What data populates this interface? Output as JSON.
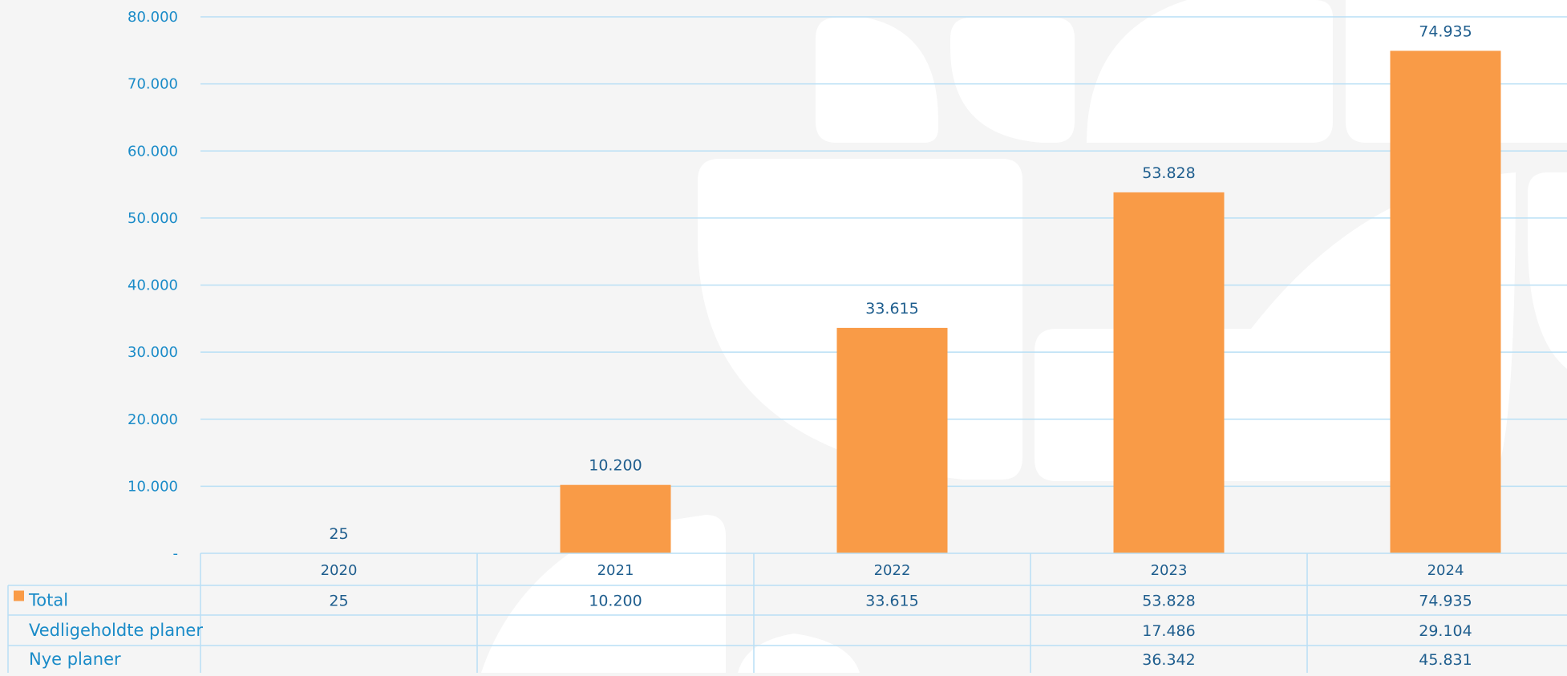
{
  "colors": {
    "bar": "#f99b47",
    "text": "#1a8bc8",
    "label_dark": "#1f5e8e",
    "grid": "#b9dff5",
    "background": "#f5f5f5",
    "watermark": "#ffffff"
  },
  "chart_data": {
    "type": "bar",
    "categories": [
      "2020",
      "2021",
      "2022",
      "2023",
      "2024"
    ],
    "series": [
      {
        "name": "Total",
        "values": [
          25,
          10200,
          33615,
          53828,
          74935
        ]
      }
    ],
    "ylim": [
      0,
      80000
    ],
    "yticks": [
      "-",
      "10.000",
      "20.000",
      "30.000",
      "40.000",
      "50.000",
      "60.000",
      "70.000",
      "80.000"
    ],
    "data_labels": [
      "25",
      "10.200",
      "33.615",
      "53.828",
      "74.935"
    ],
    "grid": true,
    "legend": "data table below chart",
    "table": {
      "rows": [
        {
          "label": "Total",
          "has_key": true,
          "cells": [
            "25",
            "10.200",
            "33.615",
            "53.828",
            "74.935"
          ]
        },
        {
          "label": "Vedligeholdte planer",
          "has_key": false,
          "cells": [
            "",
            "",
            "",
            "17.486",
            "29.104"
          ]
        },
        {
          "label": "Nye planer",
          "has_key": false,
          "cells": [
            "",
            "",
            "",
            "36.342",
            "45.831"
          ]
        }
      ]
    }
  }
}
